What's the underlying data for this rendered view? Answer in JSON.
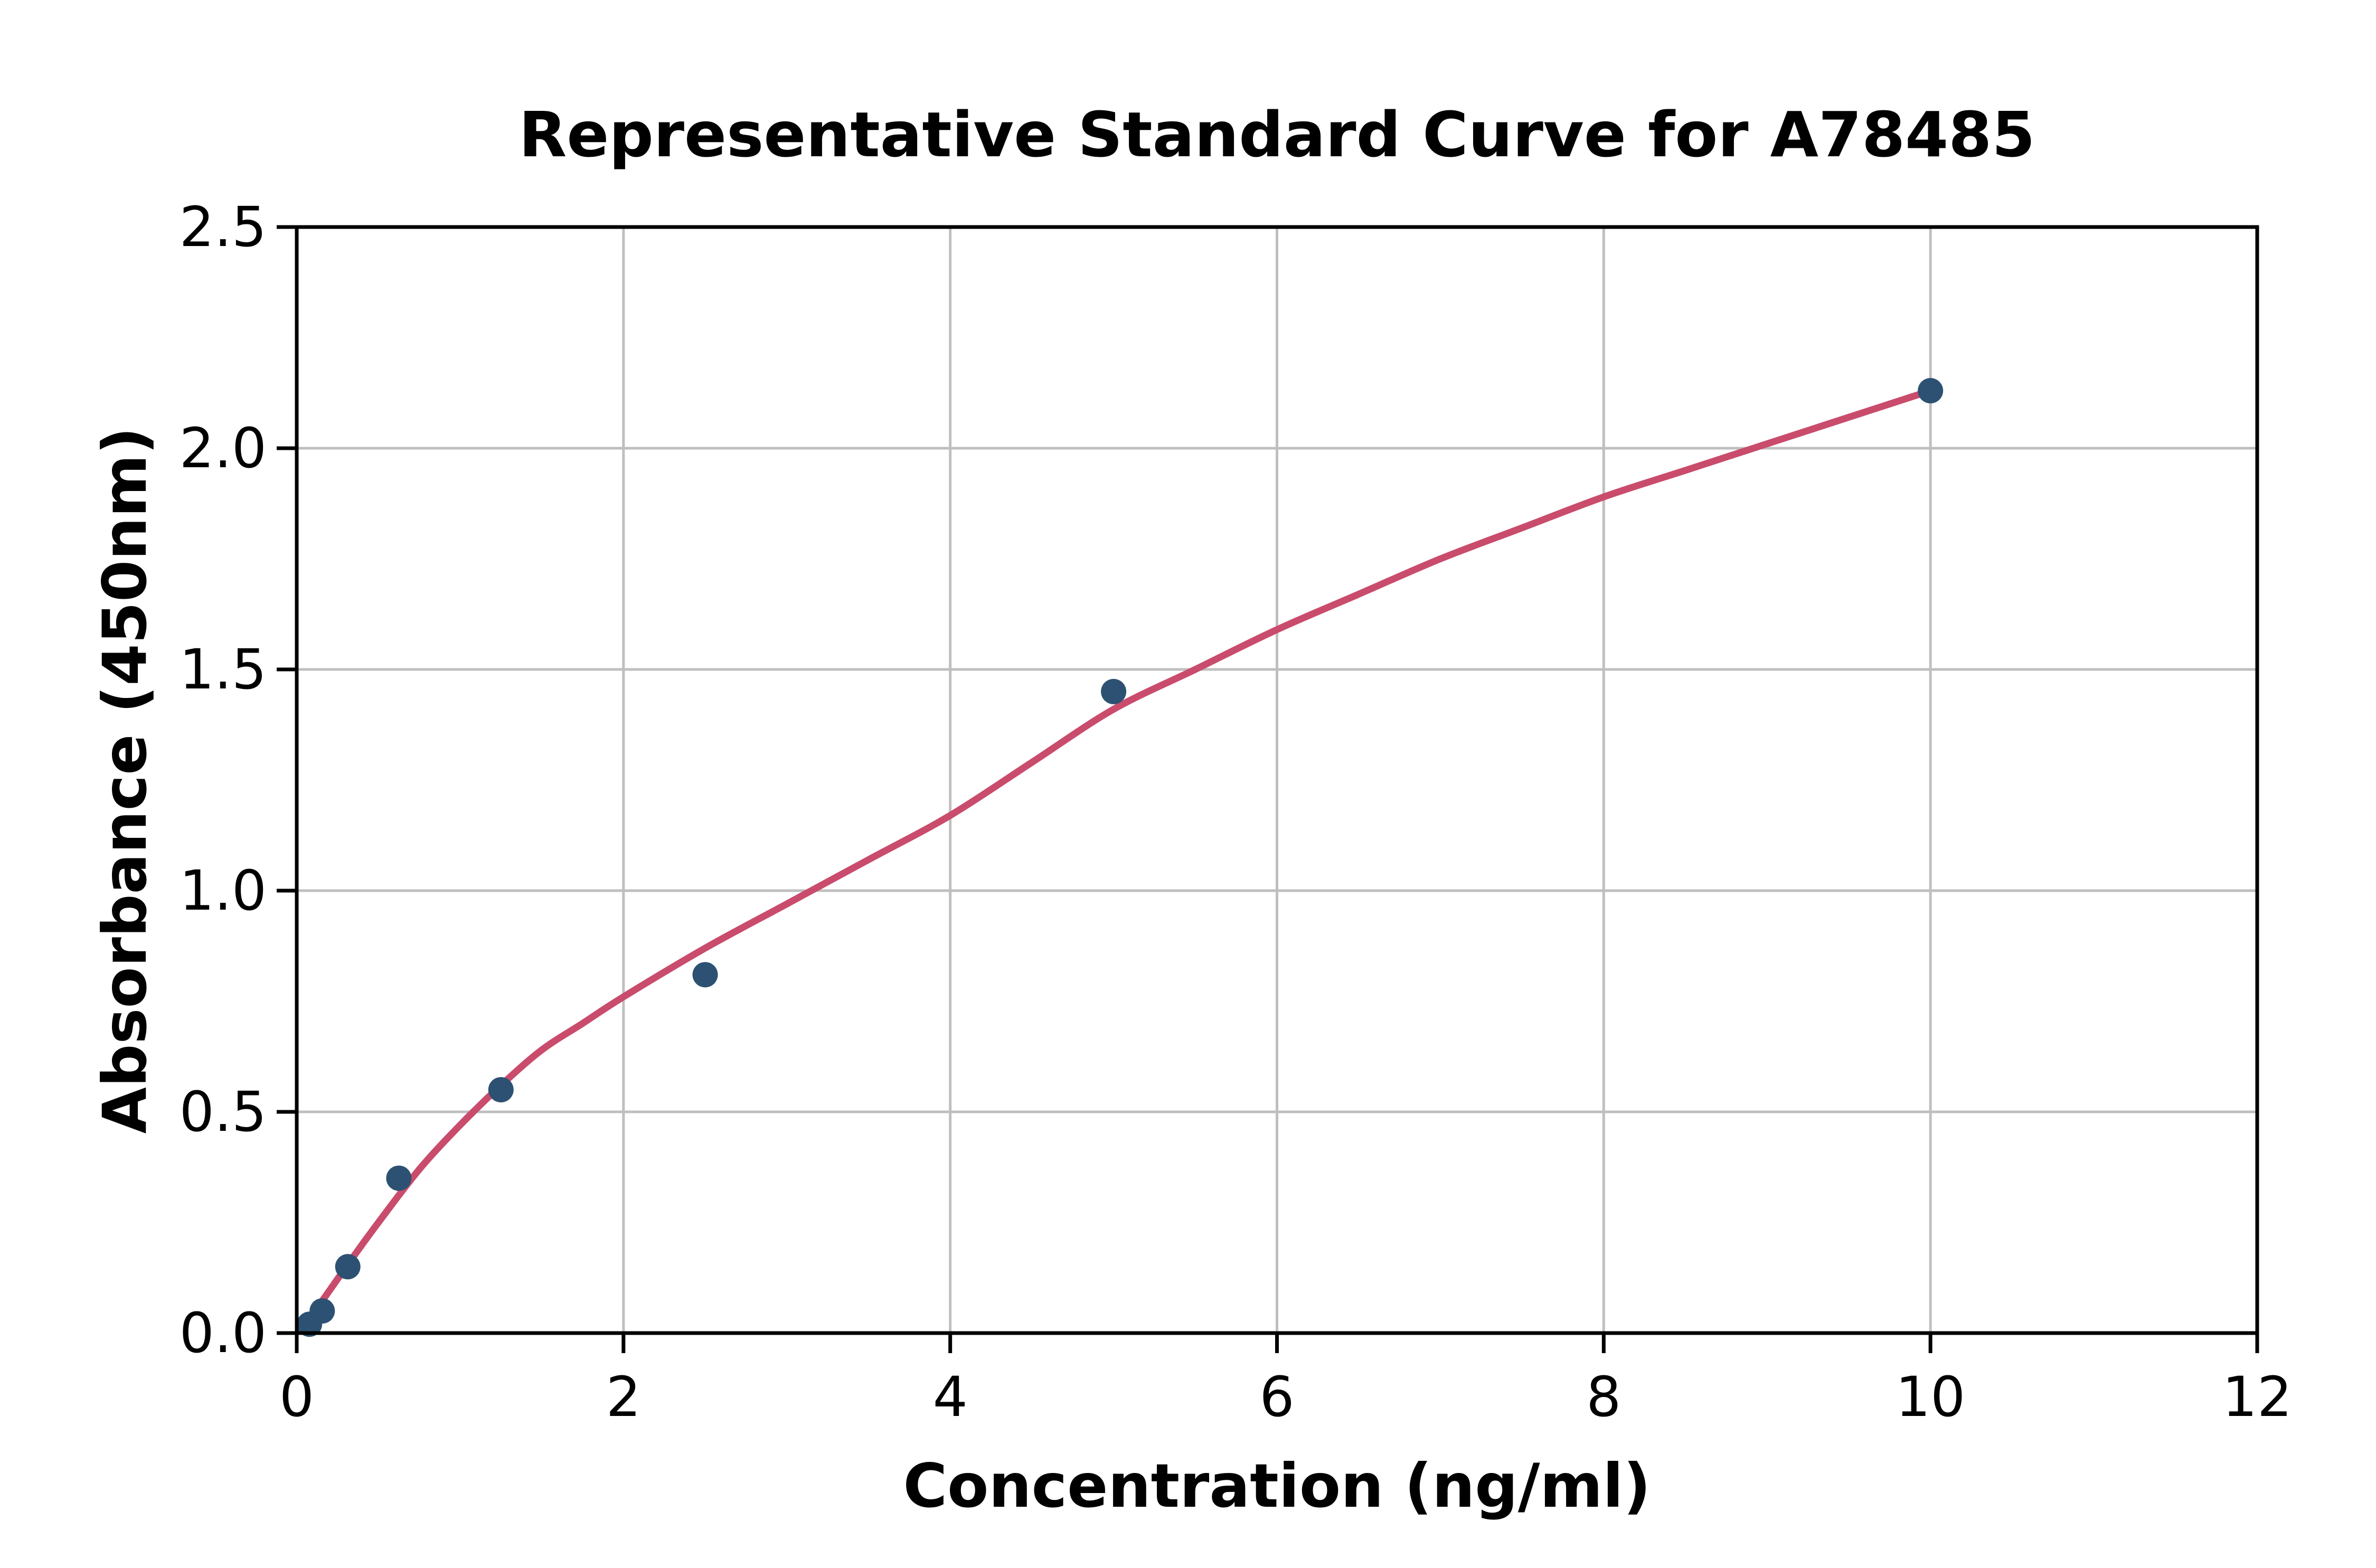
{
  "figure": {
    "title": "Representative Standard Curve for A78485",
    "x_axis": {
      "label": "Concentration (ng/ml)",
      "tick_labels": [
        "0",
        "2",
        "4",
        "6",
        "8",
        "10",
        "12"
      ],
      "tick_values": [
        0,
        2,
        4,
        6,
        8,
        10,
        12
      ],
      "min": 0,
      "max": 12
    },
    "y_axis": {
      "label": "Absorbance (450nm)",
      "tick_labels": [
        "0.0",
        "0.5",
        "1.0",
        "1.5",
        "2.0",
        "2.5"
      ],
      "tick_values": [
        0,
        0.5,
        1,
        1.5,
        2,
        2.5
      ],
      "min": 0,
      "max": 2.5
    },
    "colors": {
      "point": "#2d5172",
      "curve": "#c94c6d",
      "grid": "#bfbfbf",
      "axis": "#000000",
      "text": "#000000",
      "background": "#ffffff"
    }
  },
  "chart_data": {
    "type": "scatter",
    "title": "Representative Standard Curve for A78485",
    "xlabel": "Concentration (ng/ml)",
    "ylabel": "Absorbance (450nm)",
    "xlim": [
      0,
      12
    ],
    "ylim": [
      0,
      2.5
    ],
    "grid": true,
    "legend_position": "none",
    "series": [
      {
        "name": "standard-points",
        "type": "scatter",
        "x": [
          0.078,
          0.156,
          0.3125,
          0.625,
          1.25,
          2.5,
          5,
          10
        ],
        "y": [
          0.02,
          0.05,
          0.15,
          0.35,
          0.55,
          0.81,
          1.45,
          2.13
        ]
      },
      {
        "name": "fit-curve",
        "type": "line",
        "x": [
          0.02,
          0.16,
          0.3125,
          0.5,
          0.75,
          1.0,
          1.25,
          1.5,
          1.75,
          2.0,
          2.5,
          3.0,
          3.5,
          4.0,
          4.5,
          5.0,
          5.5,
          6.0,
          6.5,
          7.0,
          7.5,
          8.0,
          8.5,
          9.0,
          9.5,
          10.0
        ],
        "y": [
          0.005,
          0.075,
          0.155,
          0.25,
          0.37,
          0.47,
          0.56,
          0.64,
          0.7,
          0.76,
          0.87,
          0.97,
          1.07,
          1.17,
          1.29,
          1.41,
          1.5,
          1.59,
          1.67,
          1.75,
          1.82,
          1.89,
          1.95,
          2.01,
          2.07,
          2.13
        ]
      }
    ]
  }
}
